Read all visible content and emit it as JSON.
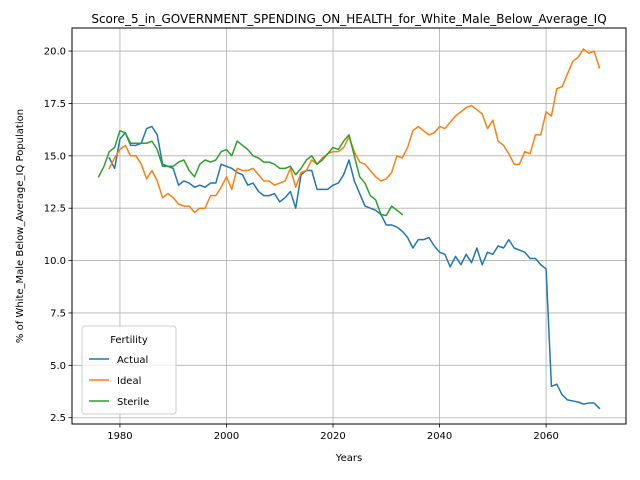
{
  "chart_data": {
    "type": "line",
    "title": "Score_5_in_GOVERNMENT_SPENDING_ON_HEALTH_for_White_Male_Below_Average_IQ",
    "xlabel": "Years",
    "ylabel": "% of White_Male Below_Average_IQ Population",
    "xlim": [
      1971,
      2075
    ],
    "ylim": [
      2.2,
      21.1
    ],
    "x_ticks": [
      1980,
      2000,
      2020,
      2040,
      2060
    ],
    "y_ticks": [
      2.5,
      5.0,
      7.5,
      10.0,
      12.5,
      15.0,
      17.5,
      20.0
    ],
    "grid": true,
    "legend": {
      "title": "Fertility",
      "placement": "lower-left"
    },
    "series": [
      {
        "name": "Actual",
        "color": "#1f77b4",
        "points": [
          [
            1978,
            14.9
          ],
          [
            1979,
            14.4
          ],
          [
            1980,
            15.8
          ],
          [
            1981,
            16.1
          ],
          [
            1982,
            15.5
          ],
          [
            1983,
            15.5
          ],
          [
            1984,
            15.6
          ],
          [
            1985,
            16.3
          ],
          [
            1986,
            16.4
          ],
          [
            1987,
            16.0
          ],
          [
            1988,
            14.6
          ],
          [
            1989,
            14.5
          ],
          [
            1990,
            14.4
          ],
          [
            1991,
            13.6
          ],
          [
            1992,
            13.8
          ],
          [
            1993,
            13.7
          ],
          [
            1994,
            13.5
          ],
          [
            1995,
            13.6
          ],
          [
            1996,
            13.5
          ],
          [
            1997,
            13.7
          ],
          [
            1998,
            13.7
          ],
          [
            1999,
            14.6
          ],
          [
            2000,
            14.5
          ],
          [
            2001,
            14.4
          ],
          [
            2002,
            14.2
          ],
          [
            2003,
            14.1
          ],
          [
            2004,
            13.6
          ],
          [
            2005,
            13.7
          ],
          [
            2006,
            13.3
          ],
          [
            2007,
            13.1
          ],
          [
            2008,
            13.1
          ],
          [
            2009,
            13.2
          ],
          [
            2010,
            12.8
          ],
          [
            2011,
            13.0
          ],
          [
            2012,
            13.3
          ],
          [
            2013,
            12.5
          ],
          [
            2014,
            14.1
          ],
          [
            2015,
            14.3
          ],
          [
            2016,
            14.3
          ],
          [
            2017,
            13.4
          ],
          [
            2018,
            13.4
          ],
          [
            2019,
            13.4
          ],
          [
            2020,
            13.6
          ],
          [
            2021,
            13.7
          ],
          [
            2022,
            14.1
          ],
          [
            2023,
            14.8
          ],
          [
            2024,
            13.8
          ],
          [
            2025,
            13.2
          ],
          [
            2026,
            12.6
          ],
          [
            2027,
            12.5
          ],
          [
            2028,
            12.4
          ],
          [
            2029,
            12.2
          ],
          [
            2030,
            11.7
          ],
          [
            2031,
            11.7
          ],
          [
            2032,
            11.6
          ],
          [
            2033,
            11.4
          ],
          [
            2034,
            11.1
          ],
          [
            2035,
            10.6
          ],
          [
            2036,
            11.0
          ],
          [
            2037,
            11.0
          ],
          [
            2038,
            11.1
          ],
          [
            2039,
            10.7
          ],
          [
            2040,
            10.4
          ],
          [
            2041,
            10.3
          ],
          [
            2042,
            9.7
          ],
          [
            2043,
            10.2
          ],
          [
            2044,
            9.8
          ],
          [
            2045,
            10.3
          ],
          [
            2046,
            9.9
          ],
          [
            2047,
            10.6
          ],
          [
            2048,
            9.8
          ],
          [
            2049,
            10.4
          ],
          [
            2050,
            10.3
          ],
          [
            2051,
            10.7
          ],
          [
            2052,
            10.6
          ],
          [
            2053,
            11.0
          ],
          [
            2054,
            10.6
          ],
          [
            2055,
            10.5
          ],
          [
            2056,
            10.4
          ],
          [
            2057,
            10.1
          ],
          [
            2058,
            10.1
          ],
          [
            2059,
            9.8
          ],
          [
            2060,
            9.6
          ],
          [
            2061,
            4.0
          ],
          [
            2062,
            4.1
          ],
          [
            2063,
            3.6
          ],
          [
            2064,
            3.35
          ],
          [
            2065,
            3.3
          ],
          [
            2066,
            3.25
          ],
          [
            2067,
            3.15
          ],
          [
            2068,
            3.2
          ],
          [
            2069,
            3.2
          ],
          [
            2070,
            2.95
          ]
        ]
      },
      {
        "name": "Ideal",
        "color": "#ff7f0e",
        "points": [
          [
            1978,
            14.4
          ],
          [
            1979,
            14.9
          ],
          [
            1980,
            15.3
          ],
          [
            1981,
            15.5
          ],
          [
            1982,
            15.0
          ],
          [
            1983,
            15.0
          ],
          [
            1984,
            14.6
          ],
          [
            1985,
            13.9
          ],
          [
            1986,
            14.3
          ],
          [
            1987,
            13.8
          ],
          [
            1988,
            13.0
          ],
          [
            1989,
            13.2
          ],
          [
            1990,
            13.0
          ],
          [
            1991,
            12.7
          ],
          [
            1992,
            12.6
          ],
          [
            1993,
            12.6
          ],
          [
            1994,
            12.3
          ],
          [
            1995,
            12.5
          ],
          [
            1996,
            12.5
          ],
          [
            1997,
            13.1
          ],
          [
            1998,
            13.1
          ],
          [
            1999,
            13.5
          ],
          [
            2000,
            14.0
          ],
          [
            2001,
            13.4
          ],
          [
            2002,
            14.4
          ],
          [
            2003,
            14.3
          ],
          [
            2004,
            14.3
          ],
          [
            2005,
            14.4
          ],
          [
            2006,
            14.1
          ],
          [
            2007,
            13.8
          ],
          [
            2008,
            13.8
          ],
          [
            2009,
            13.6
          ],
          [
            2010,
            13.7
          ],
          [
            2011,
            13.8
          ],
          [
            2012,
            14.4
          ],
          [
            2013,
            13.5
          ],
          [
            2014,
            14.2
          ],
          [
            2015,
            14.3
          ],
          [
            2016,
            14.8
          ],
          [
            2017,
            14.6
          ],
          [
            2018,
            14.9
          ],
          [
            2019,
            15.1
          ],
          [
            2020,
            15.2
          ],
          [
            2021,
            15.2
          ],
          [
            2022,
            15.4
          ],
          [
            2023,
            15.9
          ],
          [
            2024,
            15.2
          ],
          [
            2025,
            14.7
          ],
          [
            2026,
            14.6
          ],
          [
            2027,
            14.3
          ],
          [
            2028,
            14.0
          ],
          [
            2029,
            13.8
          ],
          [
            2030,
            13.9
          ],
          [
            2031,
            14.2
          ],
          [
            2032,
            15.0
          ],
          [
            2033,
            14.9
          ],
          [
            2034,
            15.4
          ],
          [
            2035,
            16.2
          ],
          [
            2036,
            16.4
          ],
          [
            2037,
            16.2
          ],
          [
            2038,
            16.0
          ],
          [
            2039,
            16.1
          ],
          [
            2040,
            16.4
          ],
          [
            2041,
            16.3
          ],
          [
            2042,
            16.6
          ],
          [
            2043,
            16.9
          ],
          [
            2044,
            17.1
          ],
          [
            2045,
            17.3
          ],
          [
            2046,
            17.4
          ],
          [
            2047,
            17.2
          ],
          [
            2048,
            17.0
          ],
          [
            2049,
            16.3
          ],
          [
            2050,
            16.7
          ],
          [
            2051,
            15.7
          ],
          [
            2052,
            15.5
          ],
          [
            2053,
            15.1
          ],
          [
            2054,
            14.6
          ],
          [
            2055,
            14.6
          ],
          [
            2056,
            15.2
          ],
          [
            2057,
            15.1
          ],
          [
            2058,
            16.0
          ],
          [
            2059,
            16.0
          ],
          [
            2060,
            17.1
          ],
          [
            2061,
            16.9
          ],
          [
            2062,
            18.2
          ],
          [
            2063,
            18.3
          ],
          [
            2064,
            18.9
          ],
          [
            2065,
            19.5
          ],
          [
            2066,
            19.7
          ],
          [
            2067,
            20.1
          ],
          [
            2068,
            19.9
          ],
          [
            2069,
            20.0
          ],
          [
            2070,
            19.2
          ]
        ]
      },
      {
        "name": "Sterile",
        "color": "#2ca02c",
        "points": [
          [
            1976,
            14.0
          ],
          [
            1977,
            14.5
          ],
          [
            1978,
            15.2
          ],
          [
            1979,
            15.4
          ],
          [
            1980,
            16.2
          ],
          [
            1981,
            16.1
          ],
          [
            1982,
            15.6
          ],
          [
            1983,
            15.6
          ],
          [
            1984,
            15.6
          ],
          [
            1985,
            15.6
          ],
          [
            1986,
            15.7
          ],
          [
            1987,
            15.3
          ],
          [
            1988,
            14.5
          ],
          [
            1989,
            14.5
          ],
          [
            1990,
            14.5
          ],
          [
            1991,
            14.7
          ],
          [
            1992,
            14.8
          ],
          [
            1993,
            14.3
          ],
          [
            1994,
            14.0
          ],
          [
            1995,
            14.6
          ],
          [
            1996,
            14.8
          ],
          [
            1997,
            14.7
          ],
          [
            1998,
            14.8
          ],
          [
            1999,
            15.2
          ],
          [
            2000,
            15.3
          ],
          [
            2001,
            15.0
          ],
          [
            2002,
            15.7
          ],
          [
            2003,
            15.5
          ],
          [
            2004,
            15.3
          ],
          [
            2005,
            15.0
          ],
          [
            2006,
            14.9
          ],
          [
            2007,
            14.7
          ],
          [
            2008,
            14.7
          ],
          [
            2009,
            14.6
          ],
          [
            2010,
            14.4
          ],
          [
            2011,
            14.4
          ],
          [
            2012,
            14.5
          ],
          [
            2013,
            14.1
          ],
          [
            2014,
            14.4
          ],
          [
            2015,
            14.8
          ],
          [
            2016,
            15.0
          ],
          [
            2017,
            14.6
          ],
          [
            2018,
            14.8
          ],
          [
            2019,
            15.1
          ],
          [
            2020,
            15.4
          ],
          [
            2021,
            15.3
          ],
          [
            2022,
            15.7
          ],
          [
            2023,
            16.0
          ],
          [
            2024,
            15.0
          ],
          [
            2025,
            14.0
          ],
          [
            2026,
            13.7
          ],
          [
            2027,
            13.1
          ],
          [
            2028,
            12.9
          ],
          [
            2029,
            12.2
          ],
          [
            2030,
            12.15
          ],
          [
            2031,
            12.6
          ],
          [
            2032,
            12.4
          ],
          [
            2033,
            12.2
          ]
        ]
      }
    ]
  }
}
